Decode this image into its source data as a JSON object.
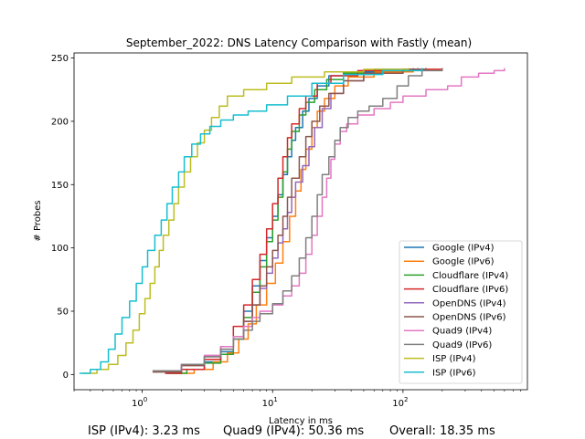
{
  "chart_data": {
    "type": "line",
    "title": "September_2022: DNS Latency Comparison with Fastly (mean)",
    "xlabel": "Latency in ms",
    "ylabel": "# Probes",
    "xscale": "log",
    "xlim": [
      0.3,
      900
    ],
    "ylim": [
      -12,
      254
    ],
    "xticks": [
      1,
      10,
      100
    ],
    "xtick_labels": [
      "10^0",
      "10^1",
      "10^2"
    ],
    "yticks": [
      0,
      50,
      100,
      150,
      200,
      250
    ],
    "legend_position": "lower-right",
    "series": [
      {
        "name": "Google (IPv4)",
        "color": "#1f77b4",
        "points": [
          [
            1.5,
            1
          ],
          [
            2,
            4
          ],
          [
            3,
            10
          ],
          [
            4,
            18
          ],
          [
            5,
            30
          ],
          [
            6,
            50
          ],
          [
            7,
            70
          ],
          [
            8,
            90
          ],
          [
            9,
            108
          ],
          [
            10,
            125
          ],
          [
            11,
            142
          ],
          [
            12,
            158
          ],
          [
            13,
            172
          ],
          [
            14,
            185
          ],
          [
            15,
            195
          ],
          [
            17,
            208
          ],
          [
            19,
            218
          ],
          [
            22,
            228
          ],
          [
            27,
            236
          ],
          [
            35,
            239
          ],
          [
            60,
            241
          ],
          [
            130,
            242
          ]
        ]
      },
      {
        "name": "Google (IPv6)",
        "color": "#ff7f0e",
        "points": [
          [
            1.8,
            1
          ],
          [
            2.5,
            4
          ],
          [
            3.5,
            10
          ],
          [
            4.5,
            17
          ],
          [
            5.5,
            28
          ],
          [
            6.5,
            40
          ],
          [
            7.5,
            55
          ],
          [
            9,
            72
          ],
          [
            10.5,
            88
          ],
          [
            12,
            105
          ],
          [
            13.5,
            125
          ],
          [
            15,
            145
          ],
          [
            16.5,
            162
          ],
          [
            18,
            178
          ],
          [
            20,
            195
          ],
          [
            22,
            208
          ],
          [
            25,
            218
          ],
          [
            30,
            228
          ],
          [
            38,
            235
          ],
          [
            60,
            239
          ],
          [
            120,
            241
          ],
          [
            200,
            242
          ]
        ]
      },
      {
        "name": "Cloudflare (IPv4)",
        "color": "#2ca02c",
        "points": [
          [
            1.6,
            1
          ],
          [
            2.2,
            4
          ],
          [
            3,
            9
          ],
          [
            4,
            16
          ],
          [
            5,
            28
          ],
          [
            6,
            45
          ],
          [
            7,
            65
          ],
          [
            8,
            85
          ],
          [
            9,
            105
          ],
          [
            10,
            122
          ],
          [
            11,
            140
          ],
          [
            12,
            160
          ],
          [
            13,
            178
          ],
          [
            14,
            192
          ],
          [
            16,
            205
          ],
          [
            18,
            215
          ],
          [
            21,
            225
          ],
          [
            26,
            233
          ],
          [
            35,
            238
          ],
          [
            60,
            240
          ],
          [
            120,
            242
          ]
        ]
      },
      {
        "name": "Cloudflare (IPv6)",
        "color": "#d62728",
        "points": [
          [
            1.5,
            1
          ],
          [
            2,
            4
          ],
          [
            3,
            12
          ],
          [
            4,
            22
          ],
          [
            5,
            38
          ],
          [
            6,
            55
          ],
          [
            7,
            75
          ],
          [
            8,
            95
          ],
          [
            9,
            115
          ],
          [
            10,
            135
          ],
          [
            11,
            155
          ],
          [
            12,
            172
          ],
          [
            13,
            187
          ],
          [
            14,
            198
          ],
          [
            16,
            210
          ],
          [
            18,
            220
          ],
          [
            22,
            230
          ],
          [
            28,
            236
          ],
          [
            45,
            240
          ],
          [
            100,
            241
          ],
          [
            200,
            242
          ]
        ]
      },
      {
        "name": "OpenDNS (IPv4)",
        "color": "#9467bd",
        "points": [
          [
            1.3,
            3
          ],
          [
            2,
            8
          ],
          [
            3,
            15
          ],
          [
            4,
            22
          ],
          [
            5,
            30
          ],
          [
            6,
            42
          ],
          [
            7,
            55
          ],
          [
            8,
            68
          ],
          [
            9,
            80
          ],
          [
            10,
            92
          ],
          [
            11,
            104
          ],
          [
            12,
            115
          ],
          [
            13,
            128
          ],
          [
            14,
            140
          ],
          [
            15,
            152
          ],
          [
            17,
            165
          ],
          [
            19,
            180
          ],
          [
            21,
            195
          ],
          [
            24,
            210
          ],
          [
            28,
            222
          ],
          [
            35,
            232
          ],
          [
            50,
            238
          ],
          [
            100,
            241
          ],
          [
            150,
            242
          ]
        ]
      },
      {
        "name": "OpenDNS (IPv6)",
        "color": "#8c564b",
        "points": [
          [
            1.2,
            2
          ],
          [
            2,
            7
          ],
          [
            3,
            14
          ],
          [
            4,
            20
          ],
          [
            5,
            30
          ],
          [
            6,
            42
          ],
          [
            7,
            55
          ],
          [
            8,
            70
          ],
          [
            9,
            85
          ],
          [
            10,
            98
          ],
          [
            11,
            110
          ],
          [
            12,
            125
          ],
          [
            13,
            140
          ],
          [
            14,
            155
          ],
          [
            16,
            172
          ],
          [
            18,
            188
          ],
          [
            20,
            200
          ],
          [
            23,
            212
          ],
          [
            27,
            222
          ],
          [
            35,
            232
          ],
          [
            50,
            238
          ],
          [
            100,
            241
          ],
          [
            150,
            242
          ]
        ]
      },
      {
        "name": "Quad9 (IPv4)",
        "color": "#e377c2",
        "points": [
          [
            1.5,
            3
          ],
          [
            2,
            8
          ],
          [
            3,
            15
          ],
          [
            4,
            22
          ],
          [
            5,
            30
          ],
          [
            6,
            38
          ],
          [
            7,
            45
          ],
          [
            8,
            50
          ],
          [
            10,
            55
          ],
          [
            12,
            62
          ],
          [
            14,
            70
          ],
          [
            16,
            80
          ],
          [
            18,
            95
          ],
          [
            20,
            110
          ],
          [
            22,
            125
          ],
          [
            24,
            140
          ],
          [
            26,
            155
          ],
          [
            28,
            170
          ],
          [
            30,
            182
          ],
          [
            33,
            192
          ],
          [
            37,
            198
          ],
          [
            45,
            205
          ],
          [
            60,
            210
          ],
          [
            80,
            215
          ],
          [
            100,
            220
          ],
          [
            150,
            225
          ],
          [
            220,
            228
          ],
          [
            280,
            235
          ],
          [
            380,
            238
          ],
          [
            500,
            240
          ],
          [
            600,
            242
          ]
        ]
      },
      {
        "name": "Quad9 (IPv6)",
        "color": "#7f7f7f",
        "points": [
          [
            1.2,
            3
          ],
          [
            2,
            8
          ],
          [
            3,
            14
          ],
          [
            4,
            20
          ],
          [
            5,
            28
          ],
          [
            6,
            35
          ],
          [
            7,
            42
          ],
          [
            8,
            48
          ],
          [
            10,
            56
          ],
          [
            12,
            66
          ],
          [
            14,
            78
          ],
          [
            16,
            92
          ],
          [
            18,
            108
          ],
          [
            20,
            125
          ],
          [
            22,
            142
          ],
          [
            24,
            158
          ],
          [
            27,
            172
          ],
          [
            30,
            185
          ],
          [
            33,
            195
          ],
          [
            38,
            203
          ],
          [
            45,
            208
          ],
          [
            55,
            212
          ],
          [
            70,
            218
          ],
          [
            90,
            228
          ],
          [
            110,
            236
          ],
          [
            140,
            240
          ],
          [
            200,
            242
          ]
        ]
      },
      {
        "name": "ISP (IPv4)",
        "color": "#bcbd22",
        "points": [
          [
            0.35,
            1
          ],
          [
            0.45,
            4
          ],
          [
            0.55,
            8
          ],
          [
            0.65,
            15
          ],
          [
            0.75,
            25
          ],
          [
            0.85,
            35
          ],
          [
            0.95,
            48
          ],
          [
            1.05,
            60
          ],
          [
            1.15,
            72
          ],
          [
            1.25,
            85
          ],
          [
            1.35,
            98
          ],
          [
            1.45,
            110
          ],
          [
            1.6,
            122
          ],
          [
            1.75,
            135
          ],
          [
            1.9,
            148
          ],
          [
            2.1,
            160
          ],
          [
            2.35,
            172
          ],
          [
            2.65,
            183
          ],
          [
            3,
            193
          ],
          [
            3.4,
            203
          ],
          [
            3.9,
            212
          ],
          [
            4.5,
            220
          ],
          [
            6,
            225
          ],
          [
            9,
            230
          ],
          [
            14,
            235
          ],
          [
            25,
            239
          ],
          [
            50,
            241
          ],
          [
            110,
            242
          ]
        ]
      },
      {
        "name": "ISP (IPv6)",
        "color": "#17becf",
        "points": [
          [
            0.33,
            1
          ],
          [
            0.4,
            4
          ],
          [
            0.48,
            10
          ],
          [
            0.55,
            20
          ],
          [
            0.62,
            32
          ],
          [
            0.7,
            45
          ],
          [
            0.8,
            58
          ],
          [
            0.9,
            72
          ],
          [
            1,
            85
          ],
          [
            1.1,
            98
          ],
          [
            1.25,
            110
          ],
          [
            1.4,
            122
          ],
          [
            1.55,
            135
          ],
          [
            1.7,
            148
          ],
          [
            1.9,
            160
          ],
          [
            2.1,
            172
          ],
          [
            2.4,
            182
          ],
          [
            2.8,
            190
          ],
          [
            3.3,
            196
          ],
          [
            4,
            201
          ],
          [
            5,
            205
          ],
          [
            6.5,
            208
          ],
          [
            9,
            213
          ],
          [
            13,
            220
          ],
          [
            20,
            230
          ],
          [
            35,
            237
          ],
          [
            70,
            240
          ],
          [
            140,
            242
          ]
        ]
      }
    ]
  },
  "footer": {
    "isp": "ISP (IPv4): 3.23 ms",
    "quad9": "Quad9 (IPv4): 50.36 ms",
    "overall": "Overall: 18.35 ms"
  }
}
